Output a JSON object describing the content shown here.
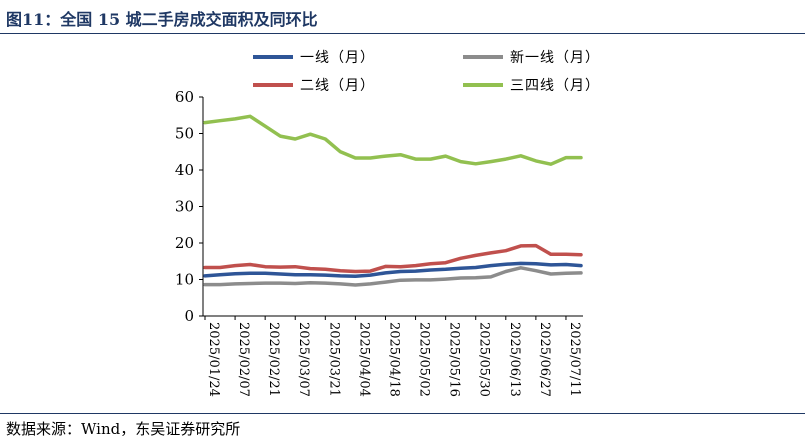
{
  "figure": {
    "title": "图11：全国 15 城二手房成交面积及同环比",
    "source": "数据来源：Wind，东吴证券研究所"
  },
  "chart_data": {
    "type": "line",
    "title": "",
    "xlabel": "",
    "ylabel": "",
    "ylim": [
      0,
      60
    ],
    "yticks": [
      0,
      10,
      20,
      30,
      40,
      50,
      60
    ],
    "grid": false,
    "legend_position": "top",
    "x": [
      "2025/01/24",
      "2025/01/31",
      "2025/02/07",
      "2025/02/14",
      "2025/02/21",
      "2025/02/28",
      "2025/03/07",
      "2025/03/14",
      "2025/03/21",
      "2025/03/28",
      "2025/04/04",
      "2025/04/11",
      "2025/04/18",
      "2025/04/25",
      "2025/05/02",
      "2025/05/09",
      "2025/05/16",
      "2025/05/23",
      "2025/05/30",
      "2025/06/06",
      "2025/06/13",
      "2025/06/20",
      "2025/06/27",
      "2025/07/04",
      "2025/07/11",
      "2025/07/18"
    ],
    "x_tick_labels": [
      "2025/01/24",
      "2025/02/07",
      "2025/02/21",
      "2025/03/07",
      "2025/03/21",
      "2025/04/04",
      "2025/04/18",
      "2025/05/02",
      "2025/05/16",
      "2025/05/30",
      "2025/06/13",
      "2025/06/27",
      "2025/07/11"
    ],
    "series": [
      {
        "name": "一线（月）",
        "color": "#2e5597",
        "values": [
          11.0,
          11.3,
          11.6,
          11.7,
          11.7,
          11.5,
          11.3,
          11.3,
          11.2,
          11.0,
          10.9,
          11.2,
          11.8,
          12.2,
          12.3,
          12.6,
          12.8,
          13.1,
          13.3,
          13.8,
          14.2,
          14.4,
          14.3,
          14.0,
          14.1,
          13.8
        ]
      },
      {
        "name": "新一线（月）",
        "color": "#8c8c8c",
        "values": [
          8.6,
          8.6,
          8.8,
          8.9,
          9.0,
          9.0,
          8.9,
          9.1,
          9.0,
          8.8,
          8.5,
          8.8,
          9.3,
          9.8,
          9.9,
          9.9,
          10.1,
          10.4,
          10.5,
          10.7,
          12.2,
          13.2,
          12.4,
          11.5,
          11.7,
          11.8
        ]
      },
      {
        "name": "二线（月）",
        "color": "#c0504d",
        "values": [
          13.3,
          13.3,
          13.8,
          14.1,
          13.5,
          13.4,
          13.5,
          13.0,
          12.8,
          12.4,
          12.2,
          12.3,
          13.6,
          13.5,
          13.8,
          14.3,
          14.6,
          15.8,
          16.6,
          17.3,
          17.9,
          19.2,
          19.3,
          16.9,
          16.9,
          16.8
        ]
      },
      {
        "name": "三四线（月）",
        "color": "#92c050",
        "values": [
          53.0,
          53.5,
          54.0,
          54.7,
          52.0,
          49.3,
          48.5,
          49.8,
          48.5,
          45.0,
          43.3,
          43.3,
          43.8,
          44.2,
          43.0,
          43.0,
          43.8,
          42.3,
          41.7,
          42.3,
          43.0,
          43.9,
          42.5,
          41.6,
          43.4,
          43.4
        ]
      }
    ]
  }
}
